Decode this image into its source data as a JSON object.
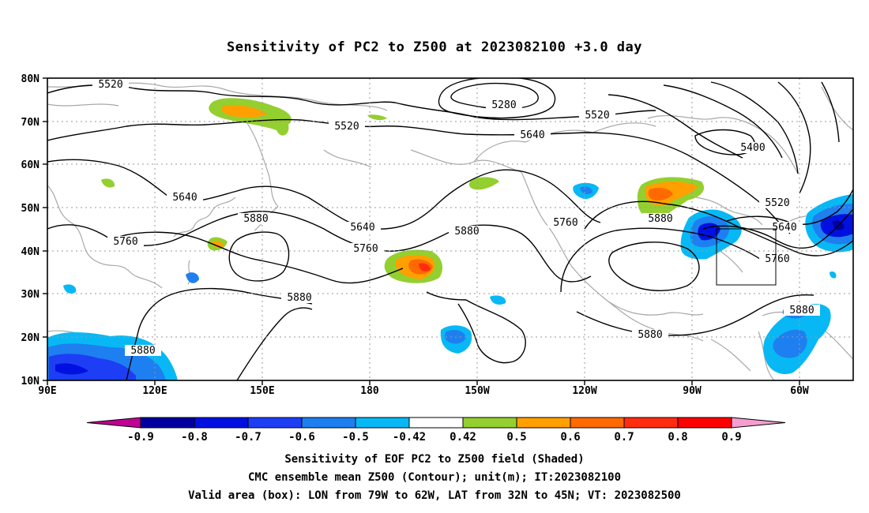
{
  "title": "Sensitivity of PC2 to Z500 at 2023082100 +3.0 day",
  "lat_labels": [
    "80N",
    "70N",
    "60N",
    "50N",
    "40N",
    "30N",
    "20N",
    "10N"
  ],
  "lon_labels": [
    "90E",
    "120E",
    "150E",
    "180",
    "150W",
    "120W",
    "90W",
    "60W"
  ],
  "contour_labels": [
    "5520",
    "5280",
    "5520",
    "5520",
    "5640",
    "5400",
    "5640",
    "5520",
    "5880",
    "5640",
    "5880",
    "5760",
    "5760",
    "5880",
    "5640",
    "5760",
    "5760",
    "5880",
    "5880",
    "5880",
    "5880"
  ],
  "colorbar": {
    "tick_labels": [
      "-0.9",
      "-0.8",
      "-0.7",
      "-0.6",
      "-0.5",
      "-0.42",
      "0.42",
      "0.5",
      "0.6",
      "0.7",
      "0.8",
      "0.9"
    ],
    "colors": [
      "#c00094",
      "#0000a0",
      "#0010e0",
      "#1d3ef5",
      "#1e7ff0",
      "#08b8f5",
      "#ffffff",
      "#94cf30",
      "#ffa000",
      "#ff6a00",
      "#ff2d10",
      "#ff0000",
      "#f59ecf"
    ]
  },
  "captions": {
    "line1": "Sensitivity of EOF PC2 to Z500 field (Shaded)",
    "line2": "CMC ensemble mean Z500 (Contour); unit(m); IT:2023082100",
    "line3": "Valid area (box): LON from 79W to 62W, LAT from 32N to 45N; VT: 2023082500"
  },
  "valid_area": {
    "lon_min": -79,
    "lon_max": -62,
    "lat_min": 32,
    "lat_max": 45
  }
}
